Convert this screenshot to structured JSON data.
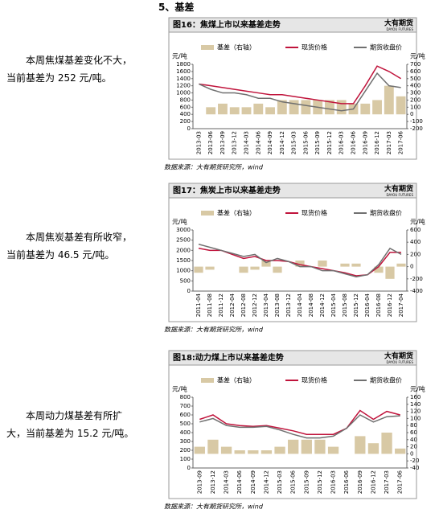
{
  "heading": "5、基差",
  "paragraphs": [
    "本周焦煤基差变化不大，当前基差为 252 元/吨。",
    "本周焦炭基差有所收窄，当前基差为 46.5 元/吨。",
    "本周动力煤基差有所扩大，当前基差为 15.2 元/吨。"
  ],
  "chart_data": [
    {
      "type": "combo",
      "title": "图16：焦煤上市以来基差走势",
      "logo": "大有期货",
      "logo_sub": "DAYOU FUTURES",
      "ylabel": "元/吨",
      "y2label": "元/吨",
      "source": "数据来源：大有期货研究所，wind",
      "categories": [
        "2013-03",
        "2013-06",
        "2013-09",
        "2013-12",
        "2014-03",
        "2014-06",
        "2014-09",
        "2014-12",
        "2015-03",
        "2015-06",
        "2015-09",
        "2015-12",
        "2016-03",
        "2016-06",
        "2016-09",
        "2016-12",
        "2017-03",
        "2017-06"
      ],
      "series": [
        {
          "name": "基差（右轴）",
          "type": "bar",
          "axis": "y2",
          "color": "#d8c9a5",
          "values": [
            0,
            100,
            150,
            100,
            100,
            150,
            100,
            200,
            200,
            200,
            200,
            200,
            200,
            150,
            150,
            200,
            400,
            252
          ]
        },
        {
          "name": "现货价格",
          "type": "line",
          "color": "#c0143c",
          "values": [
            1250,
            1200,
            1150,
            1100,
            1050,
            1000,
            950,
            950,
            900,
            850,
            800,
            750,
            700,
            700,
            1200,
            1750,
            1600,
            1400
          ]
        },
        {
          "name": "期货收盘价",
          "type": "line",
          "color": "#707070",
          "values": [
            1250,
            1100,
            1000,
            1000,
            950,
            850,
            850,
            750,
            700,
            650,
            600,
            550,
            500,
            550,
            1050,
            1550,
            1200,
            1150
          ]
        }
      ],
      "ylim": [
        0,
        1800
      ],
      "yticks": [
        0,
        200,
        400,
        600,
        800,
        1000,
        1200,
        1400,
        1600,
        1800
      ],
      "y2lim": [
        -200,
        700
      ],
      "y2ticks": [
        -200,
        -100,
        0,
        100,
        200,
        300,
        400,
        500,
        600,
        700
      ]
    },
    {
      "type": "combo",
      "title": "图17：焦炭上市以来基差走势",
      "logo": "大有期货",
      "logo_sub": "DAYOU FUTURES",
      "ylabel": "元/吨",
      "y2label": "元/吨",
      "source": "数据来源：大有期货研究所，wind",
      "categories": [
        "2011-04",
        "2011-08",
        "2011-12",
        "2012-04",
        "2012-08",
        "2012-12",
        "2013-04",
        "2013-08",
        "2013-12",
        "2014-04",
        "2014-08",
        "2014-12",
        "2015-04",
        "2015-08",
        "2015-12",
        "2016-04",
        "2016-08",
        "2016-12",
        "2017-04"
      ],
      "series": [
        {
          "name": "基差（右轴）",
          "type": "bar",
          "axis": "y2",
          "color": "#d8c9a5",
          "values": [
            -100,
            -50,
            0,
            0,
            -100,
            -50,
            100,
            -100,
            0,
            100,
            0,
            100,
            0,
            50,
            50,
            0,
            -100,
            -200,
            50
          ]
        },
        {
          "name": "现货价格",
          "type": "line",
          "color": "#c0143c",
          "values": [
            2100,
            2000,
            2000,
            1800,
            1600,
            1700,
            1500,
            1500,
            1450,
            1300,
            1200,
            1100,
            1000,
            900,
            750,
            800,
            1200,
            1900,
            1900
          ]
        },
        {
          "name": "期货收盘价",
          "type": "line",
          "color": "#707070",
          "values": [
            2300,
            2150,
            2000,
            1850,
            1700,
            1800,
            1400,
            1600,
            1450,
            1200,
            1200,
            1000,
            1000,
            850,
            700,
            800,
            1300,
            2100,
            1800
          ]
        }
      ],
      "ylim": [
        0,
        3000
      ],
      "yticks": [
        0,
        500,
        1000,
        1500,
        2000,
        2500,
        3000
      ],
      "y2lim": [
        -400,
        600
      ],
      "y2ticks": [
        -400,
        -200,
        0,
        200,
        400,
        600
      ]
    },
    {
      "type": "combo",
      "title": "图18:动力煤上市以来基差走势",
      "logo": "大有期货",
      "logo_sub": "DAYOU FUTURES",
      "ylabel": "元/吨",
      "y2label": "元/吨",
      "source": "数据来源：大有期货研究所，wind",
      "categories": [
        "2013-09",
        "2013-12",
        "2014-03",
        "2014-06",
        "2014-09",
        "2014-12",
        "2015-03",
        "2015-06",
        "2015-09",
        "2015-12",
        "2016-03",
        "2016-06",
        "2016-09",
        "2016-12",
        "2017-03",
        "2017-06"
      ],
      "series": [
        {
          "name": "基差（右轴）",
          "type": "bar",
          "axis": "y2",
          "color": "#d8c9a5",
          "values": [
            20,
            40,
            20,
            10,
            10,
            10,
            20,
            40,
            40,
            40,
            20,
            0,
            50,
            30,
            60,
            15
          ]
        },
        {
          "name": "现货价格",
          "type": "line",
          "color": "#c0143c",
          "values": [
            550,
            600,
            500,
            480,
            470,
            480,
            450,
            420,
            380,
            380,
            380,
            450,
            650,
            550,
            640,
            600
          ]
        },
        {
          "name": "期货收盘价",
          "type": "line",
          "color": "#707070",
          "values": [
            520,
            560,
            480,
            460,
            460,
            470,
            430,
            380,
            340,
            340,
            360,
            450,
            600,
            520,
            580,
            590
          ]
        }
      ],
      "ylim": [
        0,
        800
      ],
      "yticks": [
        0,
        100,
        200,
        300,
        400,
        500,
        600,
        700,
        800
      ],
      "y2lim": [
        -40,
        160
      ],
      "y2ticks": [
        -40,
        -20,
        0,
        20,
        40,
        60,
        80,
        100,
        120,
        140,
        160
      ]
    }
  ]
}
